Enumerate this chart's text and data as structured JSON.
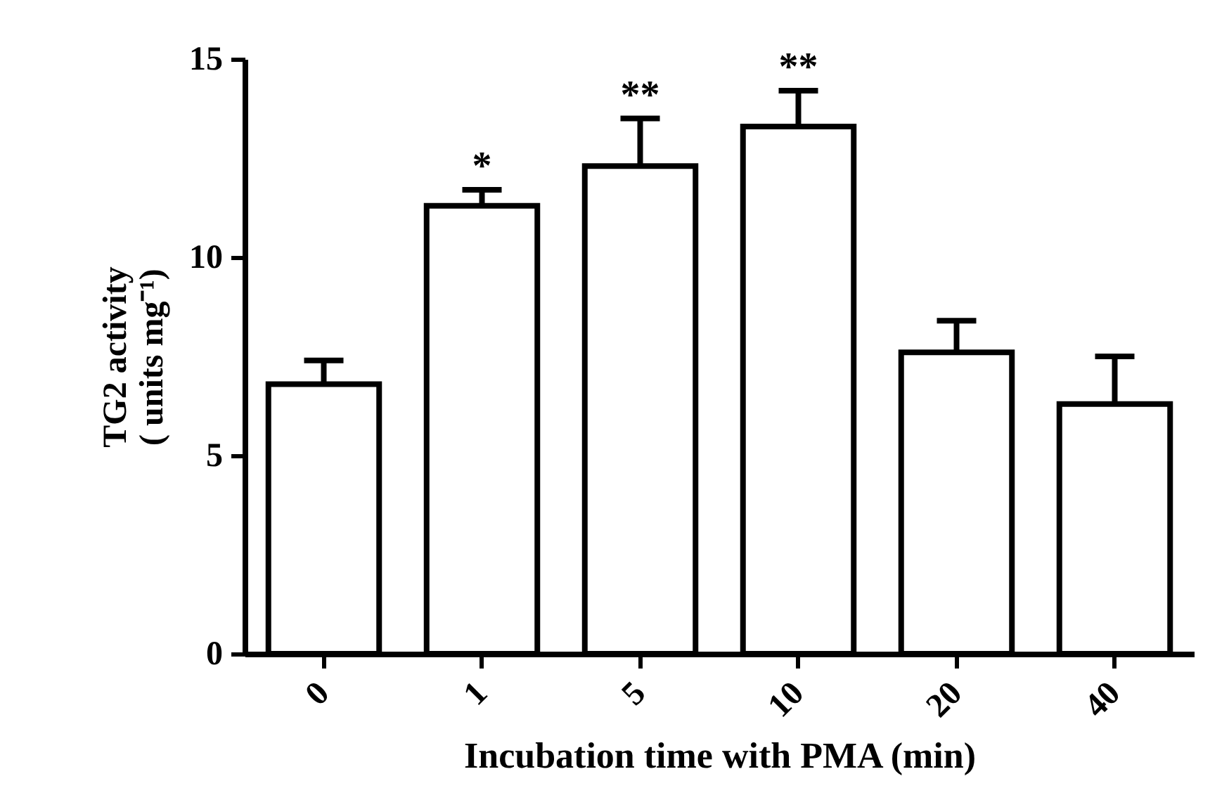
{
  "chart_data": {
    "type": "bar",
    "xlabel": "Incubation time with PMA (min)",
    "ylabel": "TG2 activity\n( units mg⁻¹)",
    "categories": [
      "0",
      "1",
      "5",
      "10",
      "20",
      "40"
    ],
    "values": [
      6.8,
      11.3,
      12.3,
      13.3,
      7.6,
      6.3
    ],
    "errors": [
      [
        6.8,
        7.4
      ],
      [
        11.3,
        11.7
      ],
      [
        12.3,
        13.5
      ],
      [
        13.3,
        14.2
      ],
      [
        7.6,
        8.4
      ],
      [
        6.3,
        7.5
      ]
    ],
    "colors": [
      "#ffffff",
      "#ffffff",
      "#ffffff",
      "#ffffff",
      "#ffffff",
      "#ffffff"
    ],
    "ylim": [
      0,
      15
    ],
    "yticks": [
      0,
      5,
      10,
      15
    ],
    "grid": false,
    "annotations": [
      {
        "text": "*",
        "x": "1",
        "y": 11.7
      },
      {
        "text": "**",
        "x": "5",
        "y": 13.5
      },
      {
        "text": "**",
        "x": "10",
        "y": 14.2
      }
    ]
  }
}
